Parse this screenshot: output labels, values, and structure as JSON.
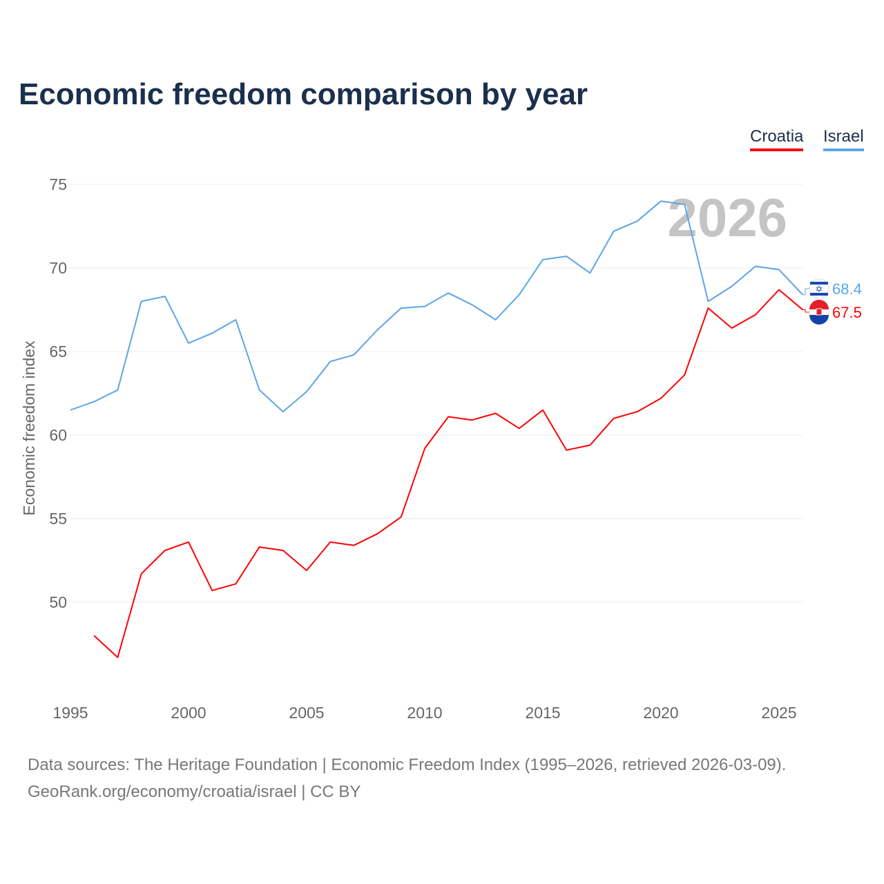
{
  "chart_data": {
    "type": "line",
    "title": "Economic freedom comparison by year",
    "xlabel": "",
    "ylabel": "Economic freedom index",
    "xlim": [
      1995,
      2026
    ],
    "ylim": [
      45,
      75
    ],
    "x_ticks": [
      "1995",
      "2000",
      "2005",
      "2010",
      "2015",
      "2020",
      "2025"
    ],
    "y_ticks": [
      "50",
      "55",
      "60",
      "65",
      "70",
      "75"
    ],
    "grid": true,
    "legend_position": "top-right",
    "year_watermark": "2026",
    "x": [
      1995,
      1996,
      1997,
      1998,
      1999,
      2000,
      2001,
      2002,
      2003,
      2004,
      2005,
      2006,
      2007,
      2008,
      2009,
      2010,
      2011,
      2012,
      2013,
      2014,
      2015,
      2016,
      2017,
      2018,
      2019,
      2020,
      2021,
      2022,
      2023,
      2024,
      2025,
      2026
    ],
    "series": [
      {
        "name": "Croatia",
        "color": "#ff0000",
        "end_label": "67.5",
        "values": [
          null,
          48.0,
          46.7,
          51.7,
          53.1,
          53.6,
          50.7,
          51.1,
          53.3,
          53.1,
          51.9,
          53.6,
          53.4,
          54.1,
          55.1,
          59.2,
          61.1,
          60.9,
          61.3,
          60.4,
          61.5,
          59.1,
          59.4,
          61.0,
          61.4,
          62.2,
          63.6,
          67.6,
          66.4,
          67.2,
          68.7,
          67.5
        ]
      },
      {
        "name": "Israel",
        "color": "#5ba4e8",
        "end_label": "68.4",
        "values": [
          61.5,
          62.0,
          62.7,
          68.0,
          68.3,
          65.5,
          66.1,
          66.9,
          62.7,
          61.4,
          62.6,
          64.4,
          64.8,
          66.3,
          67.6,
          67.7,
          68.5,
          67.8,
          66.9,
          68.4,
          70.5,
          70.7,
          69.7,
          72.2,
          72.8,
          74.0,
          73.8,
          68.0,
          68.9,
          70.1,
          69.9,
          68.4
        ]
      }
    ]
  },
  "source": {
    "line1": "Data sources: The Heritage Foundation | Economic Freedom Index (1995–2026, retrieved 2026-03-09).",
    "line2": "GeoRank.org/economy/croatia/israel | CC BY"
  }
}
